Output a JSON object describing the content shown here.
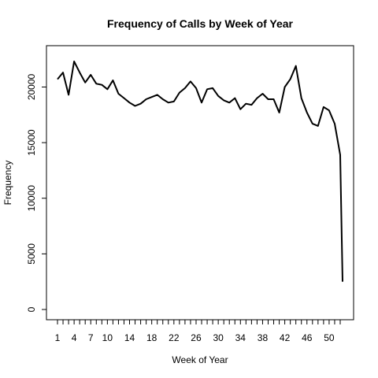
{
  "chart_data": {
    "type": "line",
    "title": "Frequency of Calls by Week of Year",
    "xlabel": "Week of Year",
    "ylabel": "Frequency",
    "x_ticks": [
      1,
      4,
      7,
      10,
      14,
      18,
      22,
      26,
      30,
      34,
      38,
      42,
      46,
      50
    ],
    "y_ticks": [
      0,
      5000,
      10000,
      15000,
      20000
    ],
    "xlim": [
      1,
      53
    ],
    "ylim": [
      0,
      22300
    ],
    "grid": false,
    "series": [
      {
        "color": "#000000",
        "x": [
          1,
          2,
          3,
          4,
          5,
          6,
          7,
          8,
          9,
          10,
          11,
          12,
          13,
          14,
          15,
          16,
          17,
          18,
          19,
          20,
          21,
          22,
          23,
          24,
          25,
          26,
          27,
          28,
          29,
          30,
          31,
          32,
          33,
          34,
          35,
          36,
          37,
          38,
          39,
          40,
          41,
          42,
          43,
          44,
          45,
          46,
          47,
          48,
          49,
          50,
          51,
          52,
          53
        ],
        "y": [
          20700,
          21300,
          19300,
          22300,
          21300,
          20400,
          21100,
          20300,
          20200,
          19800,
          20600,
          19400,
          19000,
          18600,
          18300,
          18500,
          18900,
          19100,
          19300,
          18900,
          18600,
          18700,
          19500,
          19900,
          20500,
          19900,
          18600,
          19800,
          19900,
          19200,
          18800,
          18600,
          19000,
          18000,
          18500,
          18400,
          19000,
          19400,
          18900,
          18900,
          17700,
          20000,
          20700,
          21900,
          19000,
          17700,
          16700,
          16500,
          18200,
          17900,
          16700,
          13900,
          2500
        ]
      }
    ]
  }
}
